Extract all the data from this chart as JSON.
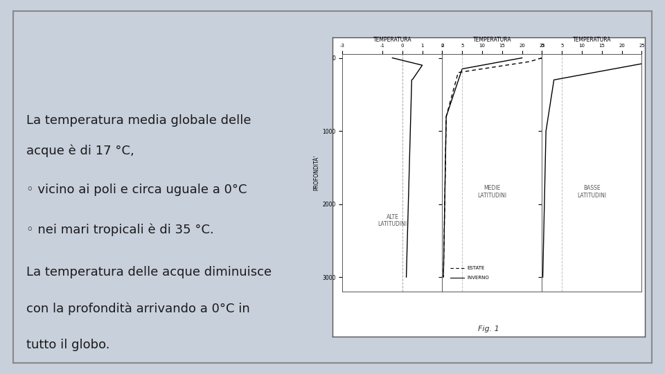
{
  "background_color": "#c8d0dc",
  "border_color": "#888888",
  "text_color": "#1a1a1a",
  "title_lines": [
    "La temperatura media globale delle",
    "acque è di 17 °C,"
  ],
  "bullet1": "◦ vicino ai poli e circa uguale a 0°C",
  "bullet2": "◦ nei mari tropicali è di 35 °C.",
  "para2_lines": [
    "La temperatura delle acque diminuisce",
    "con la profondità arrivando a 0°C in",
    "tutto il globo."
  ],
  "font_size_main": 13,
  "font_size_bullet": 13,
  "chart_title": "Fig. 1",
  "panel_labels": [
    "ALTE\nLATITUDINI",
    "MEDIE\nLATITUDINI",
    "BASSE\nLATITUDINI"
  ],
  "panel_temp_labels": [
    "TEMPERATURA",
    "TEMPERATURA",
    "TEMPERATURA"
  ],
  "ylabel": "PROFONDITÀ'",
  "legend_estate": "ESTATE",
  "legend_inverno": "INVERNO"
}
